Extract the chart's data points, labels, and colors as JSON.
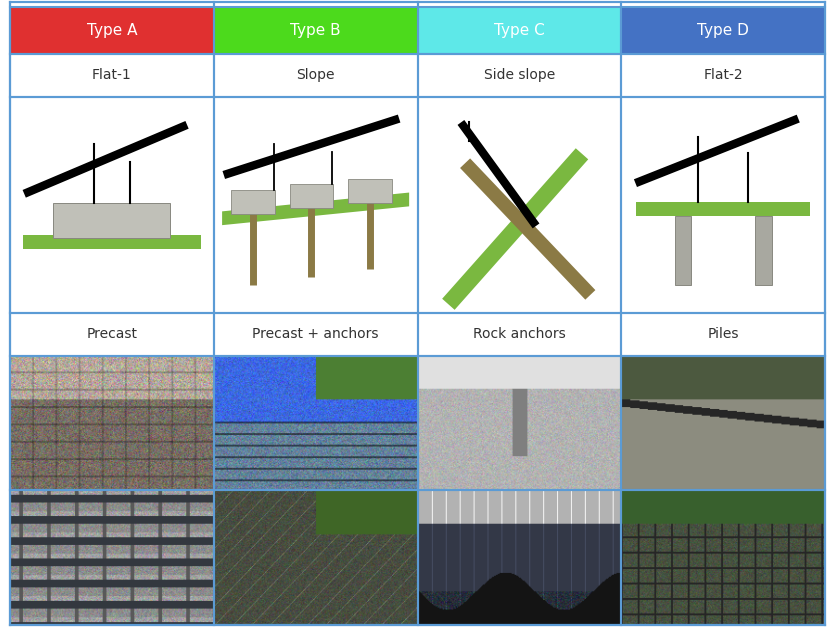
{
  "fig_width": 8.35,
  "fig_height": 6.27,
  "dpi": 100,
  "border_color": "#5b9bd5",
  "border_lw": 1.5,
  "header_colors": [
    "#e03030",
    "#4cda1c",
    "#5ee8e8",
    "#4472c4"
  ],
  "header_text_color": "white",
  "header_labels": [
    "Type A",
    "Type B",
    "Type C",
    "Type D"
  ],
  "terrain_labels": [
    "Flat-1",
    "Slope",
    "Side slope",
    "Flat-2"
  ],
  "foundation_labels": [
    "Precast",
    "Precast + anchors",
    "Rock anchors",
    "Piles"
  ],
  "grass_color": "#7ab840",
  "concrete_color": "#c0c0b8",
  "anchor_color": "#8b7a45",
  "pile_color": "#a8a8a0",
  "bg_color": "white",
  "border_outer": "#5b9bd5",
  "text_color": "#333333",
  "font_size_header": 11,
  "font_size_labels": 10,
  "photo_row1": [
    {
      "r": 120,
      "g": 110,
      "b": 100,
      "style": "concrete_close"
    },
    {
      "r": 100,
      "g": 130,
      "b": 155,
      "style": "water_panels"
    },
    {
      "r": 140,
      "g": 140,
      "b": 145,
      "style": "gray_anchor"
    },
    {
      "r": 100,
      "g": 115,
      "b": 100,
      "style": "hillside_pile"
    }
  ],
  "photo_row2": [
    {
      "r": 100,
      "g": 105,
      "b": 100,
      "style": "precast_array"
    },
    {
      "r": 90,
      "g": 95,
      "b": 80,
      "style": "slope_panels"
    },
    {
      "r": 70,
      "g": 75,
      "b": 85,
      "style": "rock_panels"
    },
    {
      "r": 80,
      "g": 90,
      "b": 80,
      "style": "green_panels"
    }
  ]
}
